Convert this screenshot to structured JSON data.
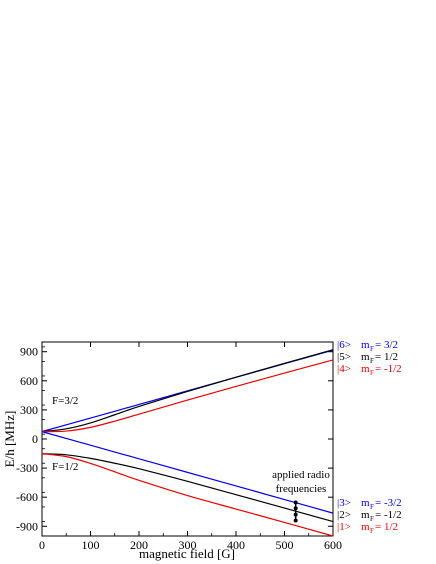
{
  "chart_data": {
    "type": "line",
    "xlabel": "magnetic field [G]",
    "ylabel": "E/h [MHz]",
    "xlim": [
      0,
      600
    ],
    "ylim": [
      -1000,
      1000
    ],
    "x_ticks": [
      "0",
      "100",
      "200",
      "300",
      "400",
      "500",
      "600"
    ],
    "y_ticks": [
      "-900",
      "-600",
      "-300",
      "0",
      "300",
      "600",
      "900"
    ],
    "grid": false,
    "colors": {
      "blue": "#0000ee",
      "black": "#000000",
      "red": "#ee0000"
    },
    "series": [
      {
        "color": "#0000ee",
        "x": [
          0,
          100,
          200,
          300,
          400,
          500,
          600
        ],
        "y": [
          76,
          216,
          356,
          496,
          636,
          776,
          916
        ]
      },
      {
        "color": "#000000",
        "x": [
          0,
          50,
          100,
          150,
          200,
          300,
          400,
          500,
          600
        ],
        "y": [
          76,
          105,
          166,
          250,
          336,
          490,
          637,
          780,
          921
        ]
      },
      {
        "color": "#ee0000",
        "x": [
          0,
          50,
          100,
          150,
          200,
          300,
          400,
          500,
          600
        ],
        "y": [
          76,
          82,
          120,
          184,
          256,
          401,
          542,
          680,
          815
        ]
      },
      {
        "color": "#0000ee",
        "x": [
          0,
          100,
          200,
          300,
          400,
          500,
          600
        ],
        "y": [
          76,
          -64,
          -204,
          -344,
          -484,
          -624,
          -764
        ]
      },
      {
        "color": "#000000",
        "x": [
          0,
          50,
          100,
          150,
          200,
          300,
          400,
          500,
          600
        ],
        "y": [
          -152,
          -163,
          -200,
          -250,
          -306,
          -436,
          -574,
          -712,
          -851
        ]
      },
      {
        "color": "#ee0000",
        "x": [
          0,
          50,
          100,
          150,
          200,
          300,
          400,
          500,
          600
        ],
        "y": [
          -152,
          -182,
          -252,
          -338,
          -426,
          -583,
          -722,
          -860,
          -1000
        ]
      }
    ],
    "transitions": {
      "x": 523,
      "points": [
        -655,
        -714,
        -780,
        -840
      ]
    },
    "annotations": {
      "f32": "F=3/2",
      "f12": "F=1/2",
      "radio_line1": "applied radio",
      "radio_line2": "frequencies"
    },
    "state_labels": [
      {
        "ket": "|6>",
        "m": "m",
        "sub": "F",
        "val": "=  3/2",
        "color": "#0000ee"
      },
      {
        "ket": "|5>",
        "m": "m",
        "sub": "F",
        "val": "=  1/2",
        "color": "#000000"
      },
      {
        "ket": "|4>",
        "m": "m",
        "sub": "F",
        "val": "= -1/2",
        "color": "#ee0000"
      },
      {
        "ket": "|3>",
        "m": "m",
        "sub": "F",
        "val": "= -3/2",
        "color": "#0000ee"
      },
      {
        "ket": "|2>",
        "m": "m",
        "sub": "F",
        "val": "= -1/2",
        "color": "#000000"
      },
      {
        "ket": "|1>",
        "m": "m",
        "sub": "F",
        "val": "=  1/2",
        "color": "#ee0000"
      }
    ]
  }
}
